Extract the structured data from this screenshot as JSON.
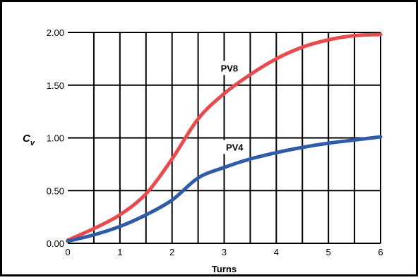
{
  "chart_data": {
    "type": "line",
    "title": "",
    "xlabel": "Turns",
    "ylabel": {
      "main": "C",
      "subscript": "v"
    },
    "xlim": [
      0,
      6
    ],
    "ylim": [
      0,
      2
    ],
    "x_ticks": [
      0,
      1,
      2,
      3,
      4,
      5,
      6
    ],
    "x_tick_labels": [
      "0",
      "1",
      "2",
      "3",
      "4",
      "5",
      "6"
    ],
    "x_grid": [
      0.5,
      1,
      1.5,
      2,
      2.5,
      3,
      3.5,
      4,
      4.5,
      5,
      5.5,
      6
    ],
    "y_ticks": [
      0,
      0.5,
      1,
      1.5,
      2
    ],
    "y_tick_labels": [
      "0.00",
      "0.50",
      "1.00",
      "1.50",
      "2.00"
    ],
    "grid": true,
    "legend": "none",
    "series": [
      {
        "name": "PV8",
        "color": "#e84a4e",
        "x": [
          0,
          0.5,
          1,
          1.5,
          2,
          2.5,
          3,
          3.5,
          4,
          4.5,
          5,
          5.5,
          6
        ],
        "y": [
          0.03,
          0.14,
          0.27,
          0.47,
          0.8,
          1.18,
          1.42,
          1.6,
          1.75,
          1.86,
          1.93,
          1.97,
          1.98
        ]
      },
      {
        "name": "PV4",
        "color": "#2e5ca8",
        "x": [
          0,
          0.5,
          1,
          1.5,
          2,
          2.5,
          3,
          3.5,
          4,
          4.5,
          5,
          5.5,
          6
        ],
        "y": [
          0.02,
          0.08,
          0.16,
          0.27,
          0.41,
          0.62,
          0.72,
          0.8,
          0.86,
          0.91,
          0.95,
          0.98,
          1.01
        ]
      }
    ]
  }
}
